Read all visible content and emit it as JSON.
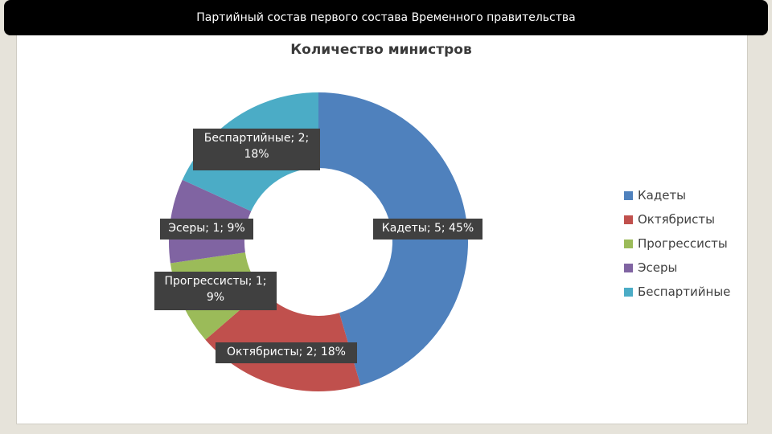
{
  "slide": {
    "title": "Партийный состав первого состава Временного правительства"
  },
  "chart_data": {
    "type": "pie",
    "variant": "doughnut",
    "title": "Количество министров",
    "legend_position": "right",
    "slices": [
      {
        "name": "Кадеты",
        "value": 5,
        "percent": "45%",
        "color": "#4f81bd",
        "label": "Кадеты; 5; 45%"
      },
      {
        "name": "Октябристы",
        "value": 2,
        "percent": "18%",
        "color": "#c0504d",
        "label": "Октябристы; 2; 18%"
      },
      {
        "name": "Прогрессисты",
        "value": 1,
        "percent": "9%",
        "color": "#9bbb59",
        "label_lines": [
          "Прогрессисты; 1;",
          "9%"
        ]
      },
      {
        "name": "Эсеры",
        "value": 1,
        "percent": "9%",
        "color": "#8064a2",
        "label": "Эсеры; 1; 9%"
      },
      {
        "name": "Беспартийные",
        "value": 2,
        "percent": "18%",
        "color": "#4bacc6",
        "label_lines": [
          "Беспартийные; 2;",
          "18%"
        ]
      }
    ]
  }
}
